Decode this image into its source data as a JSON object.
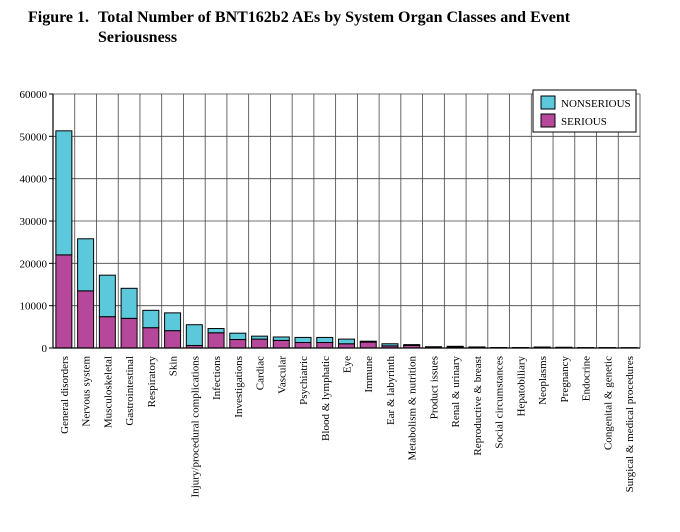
{
  "figure": {
    "number": "Figure 1.",
    "title_line1": "Total Number of BNT162b2 AEs by System Organ Classes and Event",
    "title_line2": "Seriousness"
  },
  "chart_data": {
    "type": "bar",
    "stacked": true,
    "title": "Total Number of BNT162b2 AEs by System Organ Classes and Event Seriousness",
    "xlabel": "",
    "ylabel": "",
    "ylim": [
      0,
      60000
    ],
    "yticks": [
      0,
      10000,
      20000,
      30000,
      40000,
      50000,
      60000
    ],
    "ytick_labels": [
      "0",
      "10000",
      "20000",
      "30000",
      "40000",
      "50000",
      "60000"
    ],
    "grid": "horizontal",
    "legend_position": "top-right",
    "categories": [
      "General disorders",
      "Nervous system",
      "Musculoskeletal",
      "Gastrointestinal",
      "Respiratory",
      "Skin",
      "Injury/procedural complications",
      "Infections",
      "Investigations",
      "Cardiac",
      "Vascular",
      "Psychiatric",
      "Blood & lymphatic",
      "Eye",
      "Immune",
      "Ear & labyrinth",
      "Metabolism & nutrition",
      "Product issues",
      "Renal & urinary",
      "Reproductive & breast",
      "Social circumstances",
      "Hepatobiliary",
      "Neoplasms",
      "Pregnancy",
      "Endocrine",
      "Congenital & genetic",
      "Surgical & medical procedures"
    ],
    "series": [
      {
        "name": "SERIOUS",
        "color": "#b5489b",
        "values": [
          22000,
          13500,
          7400,
          7000,
          4800,
          4100,
          600,
          3600,
          2000,
          2100,
          1800,
          1300,
          1300,
          1000,
          1400,
          500,
          600,
          200,
          250,
          150,
          50,
          80,
          200,
          100,
          50,
          50,
          40
        ]
      },
      {
        "name": "NONSERIOUS",
        "color": "#5bc8dc",
        "values": [
          29300,
          12300,
          9800,
          7100,
          4100,
          4200,
          4900,
          1000,
          1500,
          700,
          800,
          1200,
          1200,
          1100,
          200,
          500,
          200,
          100,
          150,
          100,
          60,
          30,
          20,
          80,
          40,
          50,
          30
        ]
      }
    ]
  }
}
